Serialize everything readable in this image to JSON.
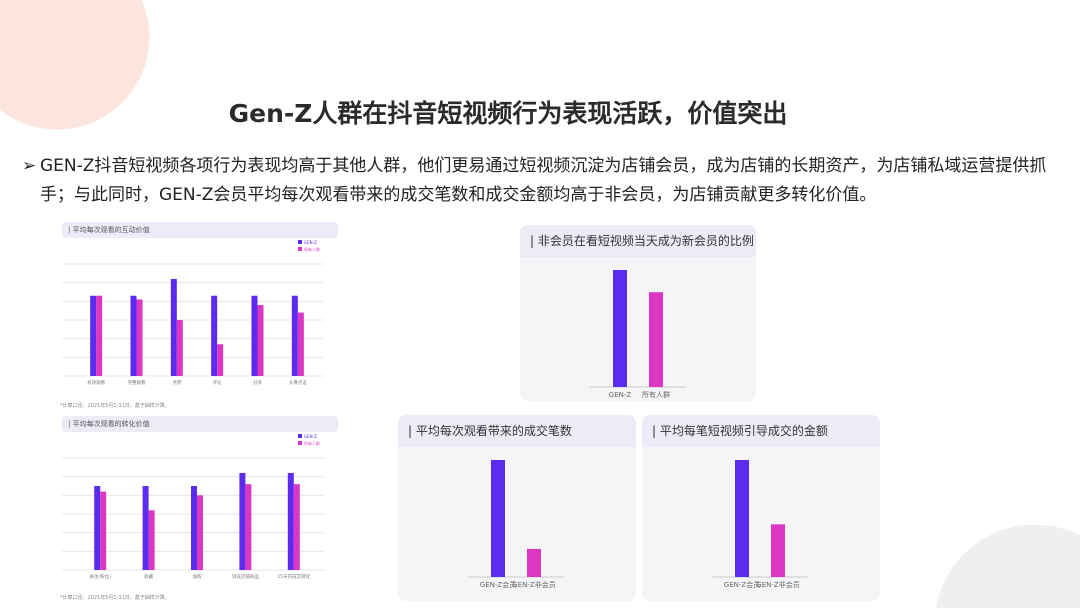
{
  "title": "Gen-Z人群在抖音短视频行为表现活跃，价值突出",
  "bullet": {
    "icon": "arrow-right-icon",
    "text": "GEN-Z抖音短视频各项行为表现均高于其他人群，他们更易通过短视频沉淀为店铺会员，成为店铺的长期资产，为店铺私域运营提供抓手；与此同时，GEN-Z会员平均每次观看带来的成交笔数和成交金额均高于非会员，为店铺贡献更多转化价值。"
  },
  "colors": {
    "genz": "#5b2cf0",
    "other": "#db37c2",
    "header": "#ecebf8"
  },
  "chart_data": [
    {
      "id": "c1",
      "type": "bar",
      "title": "| 平均每次观看的互动价值",
      "categories": [
        "有效观看",
        "完整观看",
        "点赞",
        "评论",
        "分享",
        "头像点击"
      ],
      "series": [
        {
          "name": "GEN-Z",
          "values": [
            4.3,
            4.3,
            5.2,
            4.3,
            4.3,
            4.3
          ]
        },
        {
          "name": "所有人群",
          "values": [
            4.3,
            4.1,
            3.0,
            1.7,
            3.8,
            3.4
          ]
        }
      ],
      "ylim": [
        0,
        6
      ],
      "grid": true,
      "legend": "top-right",
      "footnote": "*计算口径：2021年5月1-31日，基于抽样计算。"
    },
    {
      "id": "c2",
      "type": "bar",
      "title": "| 平均每次观看的转化价值",
      "categories": [
        "关注(粉丝)",
        "收藏",
        "加购",
        "浏览店铺商品",
        "15天内成交转化"
      ],
      "series": [
        {
          "name": "GEN-Z",
          "values": [
            4.5,
            4.5,
            4.5,
            5.2,
            5.2
          ]
        },
        {
          "name": "所有人群",
          "values": [
            4.2,
            3.2,
            4.0,
            4.6,
            4.6
          ]
        }
      ],
      "ylim": [
        0,
        6
      ],
      "grid": true,
      "legend": "top-right",
      "footnote": "*计算口径：2021年5月1-31日，基于抽样计算。"
    },
    {
      "id": "c3",
      "type": "bar",
      "title": "| 非会员在看短视频当天成为新会员的比例",
      "categories": [
        "GEN-Z",
        "所有人群"
      ],
      "values": [
        100,
        81
      ],
      "ylim": [
        0,
        100
      ]
    },
    {
      "id": "c4",
      "type": "bar",
      "title": "| 平均每次观看带来的成交笔数",
      "categories": [
        "GEN-Z会员",
        "GEN-Z非会员"
      ],
      "values": [
        100,
        24
      ],
      "ylim": [
        0,
        100
      ]
    },
    {
      "id": "c5",
      "type": "bar",
      "title": "| 平均每笔短视频引导成交的金额",
      "categories": [
        "GEN-Z会员",
        "GEN-Z非会员"
      ],
      "values": [
        100,
        45
      ],
      "ylim": [
        0,
        100
      ]
    }
  ]
}
